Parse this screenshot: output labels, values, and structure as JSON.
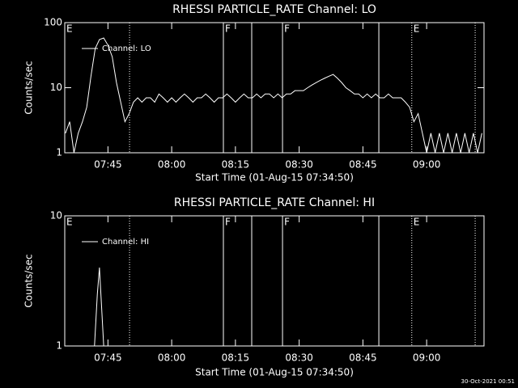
{
  "chart_data": [
    {
      "type": "line",
      "title": "RHESSI PARTICLE_RATE Channel: LO",
      "x_label": "Start Time (01-Aug-15 07:34:50)",
      "y_label": "Counts/sec",
      "log_y": true,
      "ylim": [
        1,
        100
      ],
      "yticks": [
        1,
        10,
        100
      ],
      "xlim": [
        "07:34:50",
        "09:13:30"
      ],
      "xticks": [
        "07:45",
        "08:00",
        "08:15",
        "08:30",
        "08:45",
        "09:00"
      ],
      "legend": "upper left",
      "markers": [
        {
          "x": "07:34:50",
          "label": "E",
          "style": "solid"
        },
        {
          "x": "07:50:05",
          "style": "dotted"
        },
        {
          "x": "08:12:10",
          "label": "F",
          "style": "solid"
        },
        {
          "x": "08:18:50",
          "style": "solid"
        },
        {
          "x": "08:26:05",
          "label": "F",
          "style": "solid"
        },
        {
          "x": "08:48:45",
          "style": "solid"
        },
        {
          "x": "08:56:30",
          "label": "E",
          "style": "dotted"
        },
        {
          "x": "09:11:25",
          "style": "dotted"
        }
      ],
      "series": [
        {
          "name": "Channel: LO",
          "color": "#ffffff",
          "x": [
            "07:35",
            "07:36",
            "07:37",
            "07:38",
            "07:39",
            "07:40",
            "07:41",
            "07:42",
            "07:43",
            "07:44",
            "07:45",
            "07:46",
            "07:47",
            "07:48",
            "07:49",
            "07:50",
            "07:51",
            "07:52",
            "07:53",
            "07:54",
            "07:55",
            "07:56",
            "07:57",
            "07:58",
            "07:59",
            "08:00",
            "08:01",
            "08:02",
            "08:03",
            "08:04",
            "08:05",
            "08:06",
            "08:07",
            "08:08",
            "08:09",
            "08:10",
            "08:11",
            "08:12",
            "08:13",
            "08:14",
            "08:15",
            "08:16",
            "08:17",
            "08:18",
            "08:19",
            "08:20",
            "08:21",
            "08:22",
            "08:23",
            "08:24",
            "08:25",
            "08:26",
            "08:27",
            "08:28",
            "08:29",
            "08:30",
            "08:31",
            "08:32",
            "08:33",
            "08:34",
            "08:35",
            "08:36",
            "08:37",
            "08:38",
            "08:39",
            "08:40",
            "08:41",
            "08:42",
            "08:43",
            "08:44",
            "08:45",
            "08:46",
            "08:47",
            "08:48",
            "08:49",
            "08:50",
            "08:51",
            "08:52",
            "08:53",
            "08:54",
            "08:55",
            "08:56",
            "08:57",
            "08:58",
            "08:59",
            "09:00",
            "09:01",
            "09:02",
            "09:03",
            "09:04",
            "09:05",
            "09:06",
            "09:07",
            "09:08",
            "09:09",
            "09:10",
            "09:11",
            "09:12",
            "09:13"
          ],
          "values": [
            2,
            3,
            1,
            2,
            3,
            5,
            15,
            40,
            55,
            58,
            45,
            30,
            12,
            6,
            3,
            4,
            6,
            7,
            6,
            7,
            7,
            6,
            8,
            7,
            6,
            7,
            6,
            7,
            8,
            7,
            6,
            7,
            7,
            8,
            7,
            6,
            7,
            7,
            8,
            7,
            6,
            7,
            8,
            7,
            7,
            8,
            7,
            8,
            8,
            7,
            8,
            7,
            8,
            8,
            9,
            9,
            9,
            10,
            11,
            12,
            13,
            14,
            15,
            16,
            14,
            12,
            10,
            9,
            8,
            8,
            7,
            8,
            7,
            8,
            7,
            7,
            8,
            7,
            7,
            7,
            6,
            5,
            3,
            4,
            2,
            1,
            2,
            1,
            2,
            1,
            2,
            1,
            2,
            1,
            2,
            1,
            2,
            1,
            2
          ]
        }
      ]
    },
    {
      "type": "line",
      "title": "RHESSI PARTICLE_RATE Channel: HI",
      "x_label": "Start Time (01-Aug-15 07:34:50)",
      "y_label": "Counts/sec",
      "log_y": true,
      "ylim": [
        1,
        10
      ],
      "yticks": [
        1,
        10
      ],
      "xlim": [
        "07:34:50",
        "09:13:30"
      ],
      "xticks": [
        "07:45",
        "08:00",
        "08:15",
        "08:30",
        "08:45",
        "09:00"
      ],
      "legend": "upper left",
      "markers": [
        {
          "x": "07:34:50",
          "label": "E",
          "style": "solid"
        },
        {
          "x": "07:50:05",
          "style": "dotted"
        },
        {
          "x": "08:12:10",
          "label": "F",
          "style": "solid"
        },
        {
          "x": "08:18:50",
          "style": "solid"
        },
        {
          "x": "08:26:05",
          "label": "F",
          "style": "solid"
        },
        {
          "x": "08:48:45",
          "style": "solid"
        },
        {
          "x": "08:56:30",
          "label": "E",
          "style": "dotted"
        },
        {
          "x": "09:11:25",
          "style": "dotted"
        }
      ],
      "series": [
        {
          "name": "Channel: HI",
          "color": "#ffffff",
          "x": [
            "07:41:50",
            "07:42:30",
            "07:43:00",
            "07:43:30",
            "07:44:00"
          ],
          "values": [
            1,
            2.5,
            4,
            2,
            1
          ]
        }
      ]
    }
  ],
  "timestamp": "30-Oct-2021 00:51"
}
